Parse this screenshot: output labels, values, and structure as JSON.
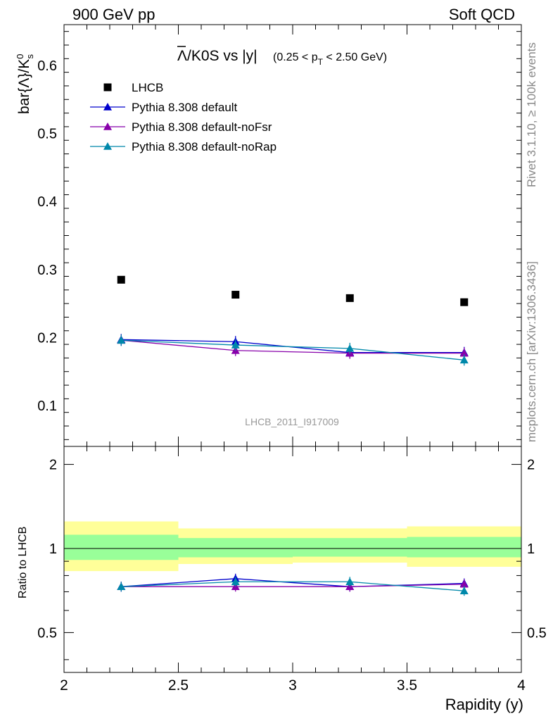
{
  "header": {
    "energy_label": "900 GeV pp",
    "category_label": "Soft QCD",
    "plot_title_main": "Λ/K0S vs |y|",
    "plot_title_sub": "(0.25 < p_T < 2.50 GeV)",
    "plot_title_sub_parts": {
      "pre": "(0.25 < p",
      "subscript": "T",
      "post": " < 2.50 GeV)"
    },
    "analysis_id": "LHCB_2011_I917009"
  },
  "side_text": {
    "rivet": "Rivet 3.1.10, ≥ 100k events",
    "mcplots": "mcplots.cern.ch [arXiv:1306.3436]"
  },
  "colors": {
    "data": "#000000",
    "default": "#0000cc",
    "noFsr": "#8800aa",
    "noRap": "#0088aa",
    "band_inner": "#99ff99",
    "band_outer": "#ffff99",
    "side_text": "#888888"
  },
  "chart_data": [
    {
      "type": "scatter",
      "panel": "main",
      "ylabel": "bar{Λ}/K",
      "ylabel_parts": {
        "pre": "bar{Λ}/K",
        "superscript": "0",
        "subscript": "s"
      },
      "xlim": [
        2.0,
        4.0
      ],
      "ylim": [
        0.04,
        0.66
      ],
      "y_ticks": [
        0.1,
        0.2,
        0.3,
        0.4,
        0.5,
        0.6
      ],
      "y_tick_labels": [
        "0.1",
        "0.2",
        "0.3",
        "0.4",
        "0.5",
        "0.6"
      ],
      "x": [
        2.25,
        2.75,
        3.25,
        3.75
      ],
      "x_bin_edges": [
        [
          2.0,
          2.5
        ],
        [
          2.5,
          3.0
        ],
        [
          3.0,
          3.5
        ],
        [
          3.5,
          4.0
        ]
      ],
      "legend_position": "top-left",
      "series": [
        {
          "name": "LHCB",
          "key": "data",
          "marker": "square",
          "values": [
            0.285,
            0.263,
            0.258,
            0.252
          ]
        },
        {
          "name": "Pythia 8.308 default",
          "key": "default",
          "marker": "triangle",
          "values": [
            0.197,
            0.194,
            0.178,
            0.178
          ]
        },
        {
          "name": "Pythia 8.308 default-noFsr",
          "key": "noFsr",
          "marker": "triangle",
          "values": [
            0.196,
            0.181,
            0.177,
            0.177
          ]
        },
        {
          "name": "Pythia 8.308 default-noRap",
          "key": "noRap",
          "marker": "triangle",
          "values": [
            0.196,
            0.189,
            0.184,
            0.167
          ]
        }
      ]
    },
    {
      "type": "line",
      "panel": "ratio",
      "ylabel": "Ratio to LHCB",
      "xlabel": "Rapidity (y)",
      "xlim": [
        2.0,
        4.0
      ],
      "ylim": [
        0.36,
        2.32
      ],
      "x_ticks": [
        2.0,
        2.5,
        3.0,
        3.5,
        4.0
      ],
      "x_tick_labels": [
        "2",
        "2.5",
        "3",
        "3.5",
        "4"
      ],
      "y_ticks": [
        0.5,
        1.0,
        2.0
      ],
      "y_tick_labels": [
        "0.5",
        "1",
        "2"
      ],
      "x": [
        2.25,
        2.75,
        3.25,
        3.75
      ],
      "bands": {
        "inner": [
          [
            0.91,
            1.12
          ],
          [
            0.93,
            1.09
          ],
          [
            0.935,
            1.09
          ],
          [
            0.93,
            1.1
          ]
        ],
        "outer": [
          [
            0.83,
            1.25
          ],
          [
            0.88,
            1.18
          ],
          [
            0.89,
            1.18
          ],
          [
            0.86,
            1.2
          ]
        ]
      },
      "series": [
        {
          "name": "Pythia 8.308 default",
          "key": "default",
          "values": [
            0.73,
            0.78,
            0.73,
            0.75
          ]
        },
        {
          "name": "Pythia 8.308 default-noFsr",
          "key": "noFsr",
          "values": [
            0.73,
            0.73,
            0.73,
            0.745
          ]
        },
        {
          "name": "Pythia 8.308 default-noRap",
          "key": "noRap",
          "values": [
            0.73,
            0.76,
            0.76,
            0.705
          ]
        }
      ]
    }
  ]
}
